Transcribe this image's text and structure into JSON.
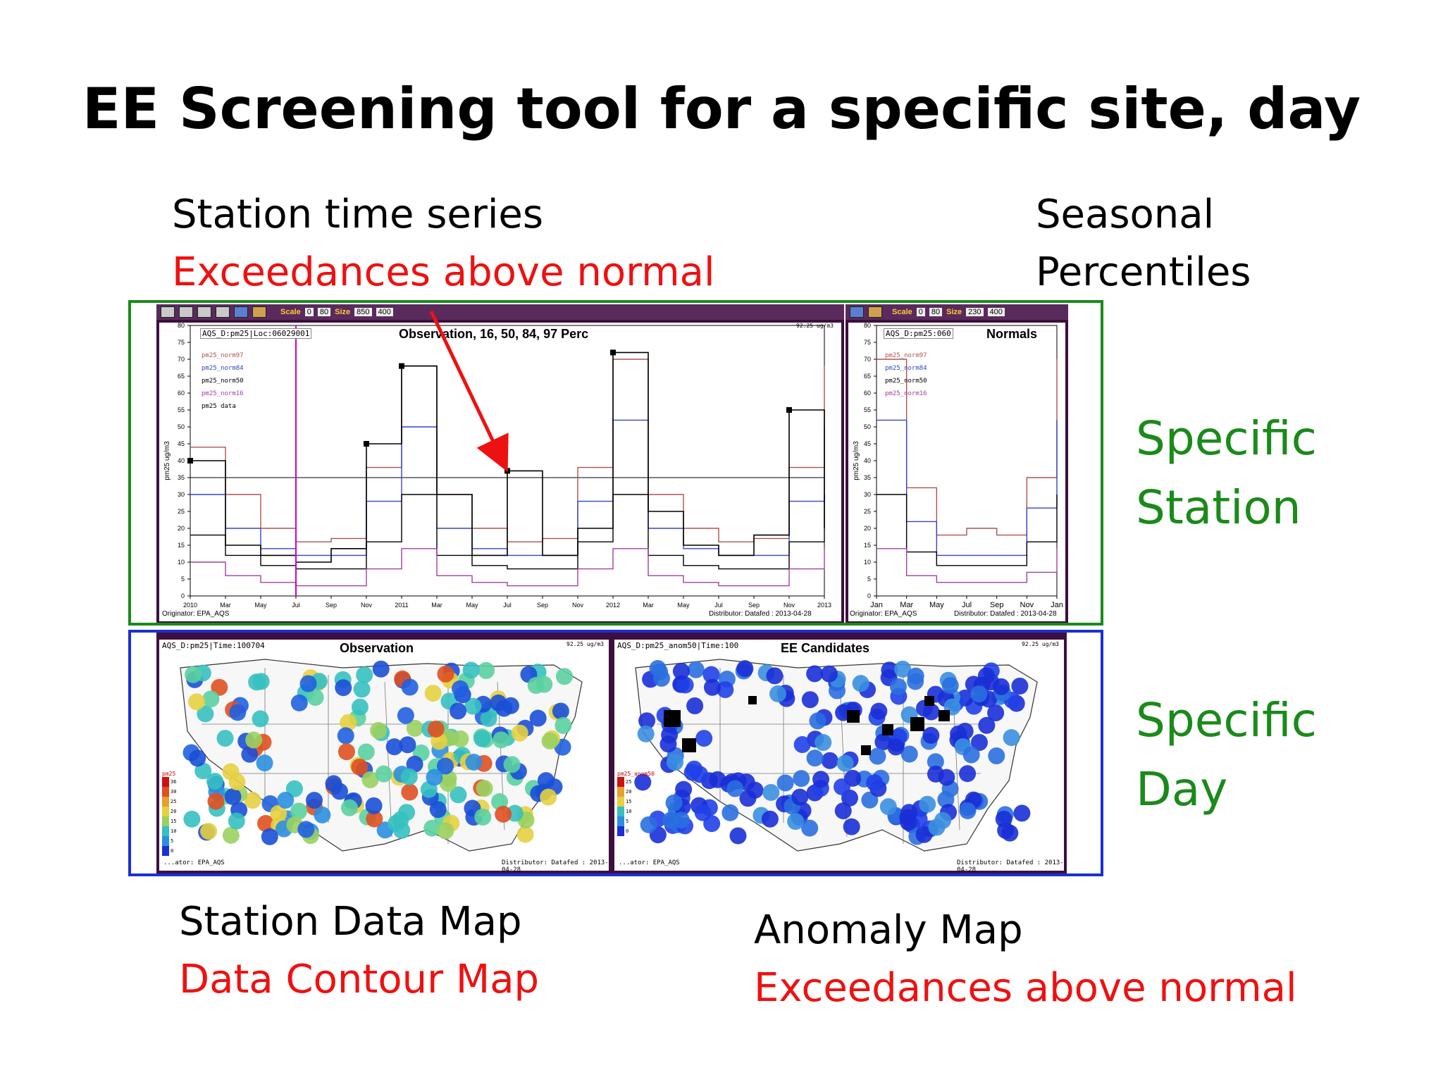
{
  "slide": {
    "title": "EE Screening tool for a specific site, day",
    "top_left_caption_1": "Station time series",
    "top_left_caption_2": "Exceedances above normal",
    "top_right_caption_1": "Seasonal",
    "top_right_caption_2": "Percentiles",
    "right_label_station_1": "Specific",
    "right_label_station_2": "Station",
    "right_label_day_1": "Specific",
    "right_label_day_2": "Day",
    "bottom_left_caption_1": "Station Data Map",
    "bottom_left_caption_2": "Data Contour Map",
    "bottom_right_caption_1": "Anomaly Map",
    "bottom_right_caption_2": "Exceedances above normal"
  },
  "timeseries_panel": {
    "toolbar": {
      "scale_label": "Scale",
      "scale_min": "0",
      "scale_max": "80",
      "size_label": "Size",
      "size_w": "850",
      "size_h": "400"
    },
    "header": "AQS_D:pm25|Loc:06029001",
    "title": "Observation, 16, 50, 84, 97 Perc",
    "units_note": "92.25 ug/m3",
    "ylabel": "pm25 ug/m3",
    "legend": [
      "pm25_norm97",
      "pm25_norm84",
      "pm25_norm50",
      "pm25_norm16",
      "pm25 data"
    ],
    "xticks": [
      "2010",
      "Mar",
      "May",
      "Jul",
      "Sep",
      "Nov",
      "2011",
      "Mar",
      "May",
      "Jul",
      "Sep",
      "Nov",
      "2012",
      "Mar",
      "May",
      "Jul",
      "Sep",
      "Nov",
      "2013"
    ],
    "originator": "Originator: EPA_AQS",
    "distributor": "Distributor: Datafed : 2013-04-28"
  },
  "normals_panel": {
    "toolbar": {
      "scale_label": "Scale",
      "scale_min": "0",
      "scale_max": "80",
      "size_label": "Size",
      "size_w": "230",
      "size_h": "400"
    },
    "header": "AQS_D:pm25:060",
    "title": "Normals",
    "ylabel": "pm25 ug/m3",
    "legend": [
      "pm25_norm97",
      "pm25_norm84",
      "pm25_norm50",
      "pm25_norm16"
    ],
    "xticks": [
      "Jan",
      "Mar",
      "May",
      "Jul",
      "Sep",
      "Nov",
      "Jan"
    ],
    "originator": "Originator: EPA_AQS",
    "distributor": "Distributor: Datafed : 2013-04-28"
  },
  "obs_map_panel": {
    "header": "AQS_D:pm25|Time:100704",
    "title": "Observation",
    "units_note": "92.25 ug/m3",
    "legend_title": "pm25",
    "legend_values": [
      "36",
      "30",
      "25",
      "20",
      "15",
      "10",
      "5",
      "0"
    ],
    "originator": "...ator: EPA_AQS",
    "distributor": "Distributor: Datafed : 2013-04-28"
  },
  "ee_map_panel": {
    "header": "AQS_D:pm25_anom50|Time:100",
    "title": "EE Candidates",
    "units_note": "92.25 ug/m3",
    "legend_title": "pm25_anom50",
    "legend_values": [
      "25",
      "20",
      "15",
      "10",
      "5",
      "0"
    ],
    "originator": "...ator: EPA_AQS",
    "distributor": "Distributor: Datafed : 2013-04-28"
  },
  "chart_data": [
    {
      "type": "line",
      "title": "Observation, 16, 50, 84, 97 Perc",
      "ylabel": "pm25 ug/m3",
      "ylim": [
        0,
        80
      ],
      "yticks": [
        0,
        5,
        10,
        15,
        20,
        25,
        30,
        35,
        40,
        45,
        50,
        55,
        60,
        65,
        70,
        75,
        80
      ],
      "categories": [
        "2010",
        "Mar",
        "May",
        "Jul",
        "Sep",
        "Nov",
        "2011",
        "Mar",
        "May",
        "Jul",
        "Sep",
        "Nov",
        "2012",
        "Mar",
        "May",
        "Jul",
        "Sep",
        "Nov",
        "2013"
      ],
      "series": [
        {
          "name": "pm25_norm97",
          "color": "#b05050",
          "values": [
            44,
            30,
            20,
            16,
            17,
            38,
            68,
            30,
            20,
            16,
            17,
            38,
            70,
            30,
            20,
            16,
            17,
            38,
            68
          ]
        },
        {
          "name": "pm25_norm84",
          "color": "#3344cc",
          "values": [
            30,
            20,
            14,
            12,
            12,
            28,
            50,
            20,
            14,
            12,
            12,
            28,
            52,
            20,
            14,
            12,
            12,
            28,
            50
          ]
        },
        {
          "name": "pm25_norm50",
          "color": "#000000",
          "values": [
            18,
            12,
            9,
            8,
            8,
            16,
            30,
            12,
            9,
            8,
            8,
            16,
            30,
            12,
            9,
            8,
            8,
            16,
            30
          ]
        },
        {
          "name": "pm25_norm16",
          "color": "#a040a0",
          "values": [
            10,
            6,
            4,
            3,
            3,
            8,
            14,
            6,
            4,
            3,
            3,
            8,
            14,
            6,
            4,
            3,
            3,
            8,
            14
          ]
        },
        {
          "name": "pm25 data",
          "color": "#000000",
          "values": [
            40,
            15,
            12,
            10,
            14,
            45,
            68,
            30,
            12,
            37,
            12,
            20,
            72,
            25,
            15,
            12,
            18,
            55,
            20
          ]
        }
      ],
      "reference_line": 35
    },
    {
      "type": "line",
      "title": "Normals",
      "ylabel": "pm25 ug/m3",
      "ylim": [
        0,
        80
      ],
      "categories": [
        "Jan",
        "Mar",
        "May",
        "Jul",
        "Sep",
        "Nov",
        "Jan"
      ],
      "series": [
        {
          "name": "pm25_norm97",
          "color": "#b05050",
          "values": [
            70,
            32,
            18,
            20,
            18,
            35,
            70
          ]
        },
        {
          "name": "pm25_norm84",
          "color": "#3344cc",
          "values": [
            52,
            22,
            12,
            12,
            12,
            26,
            52
          ]
        },
        {
          "name": "pm25_norm50",
          "color": "#000000",
          "values": [
            30,
            13,
            9,
            9,
            9,
            16,
            30
          ]
        },
        {
          "name": "pm25_norm16",
          "color": "#a040a0",
          "values": [
            14,
            6,
            4,
            4,
            4,
            7,
            14
          ]
        }
      ]
    }
  ],
  "colors": {
    "station_frame": "#1a8a1a",
    "day_frame": "#1a2fd6",
    "panel_bg": "#3d0f3f",
    "arrow": "#ee1111"
  }
}
